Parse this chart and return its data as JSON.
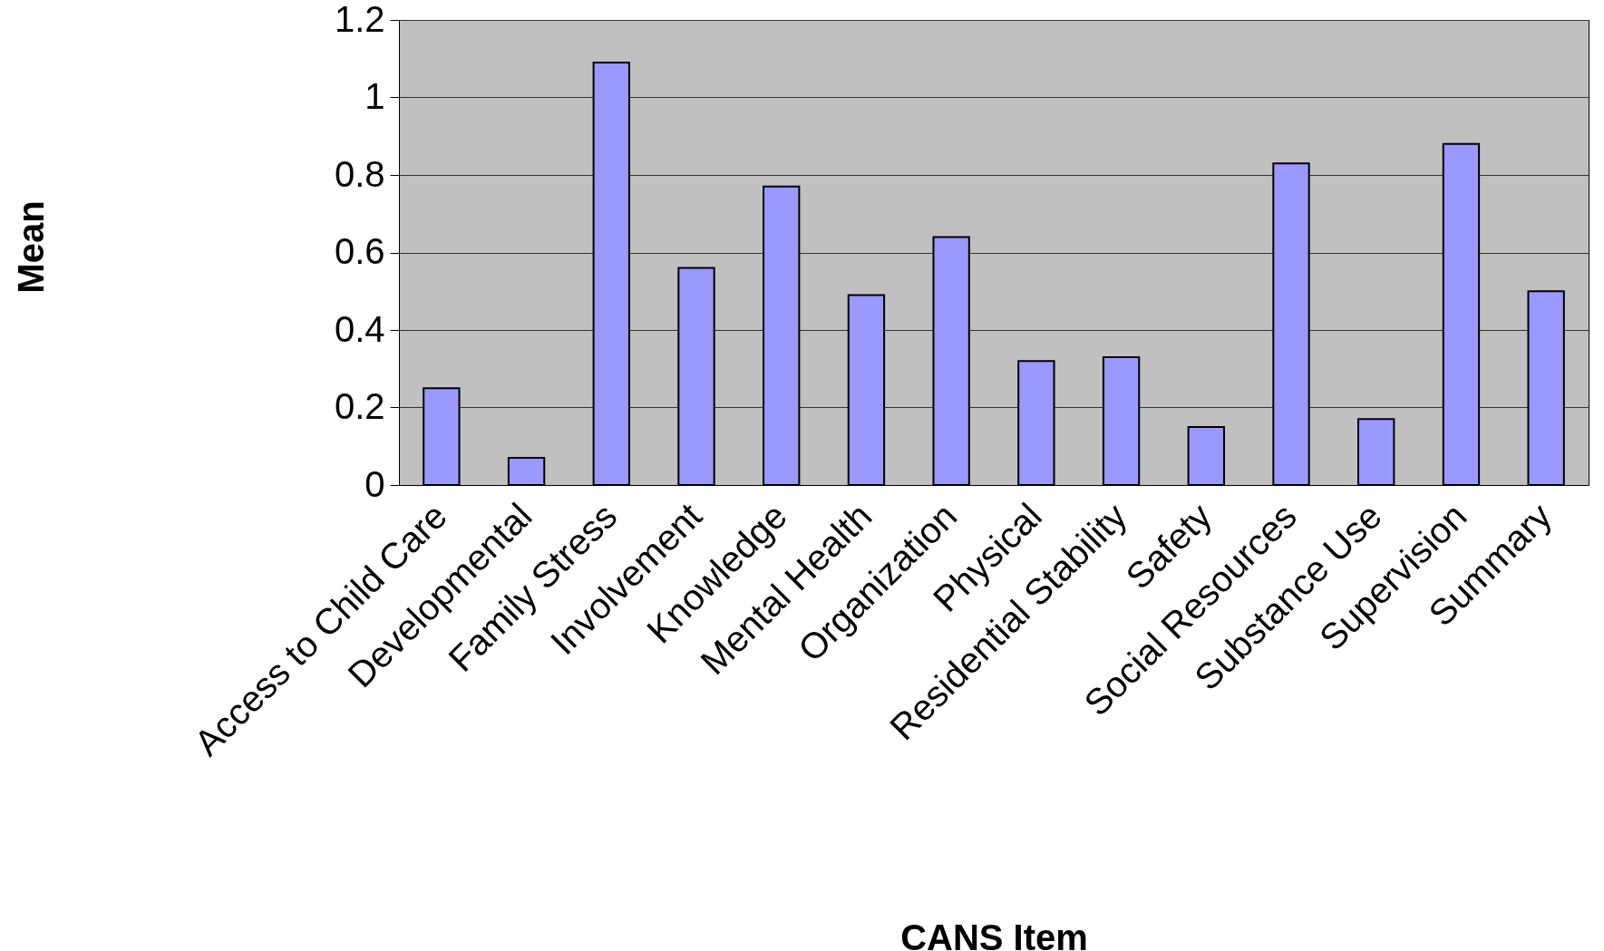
{
  "chart_data": {
    "type": "bar",
    "xlabel": "CANS Item",
    "ylabel": "Mean",
    "categories": [
      "Access to Child Care",
      "Developmental",
      "Family Stress",
      "Involvement",
      "Knowledge",
      "Mental Health",
      "Organization",
      "Physical",
      "Residential Stability",
      "Safety",
      "Social Resources",
      "Substance Use",
      "Supervision",
      "Summary"
    ],
    "values": [
      0.25,
      0.07,
      1.09,
      0.56,
      0.77,
      0.49,
      0.64,
      0.32,
      0.33,
      0.15,
      0.83,
      0.17,
      0.88,
      0.5
    ],
    "color": "#9999ff",
    "ylim": [
      0,
      1.2
    ],
    "yticks": [
      0,
      0.2,
      0.4,
      0.6,
      0.8,
      1,
      1.2
    ],
    "grid": "y",
    "legend": false
  }
}
